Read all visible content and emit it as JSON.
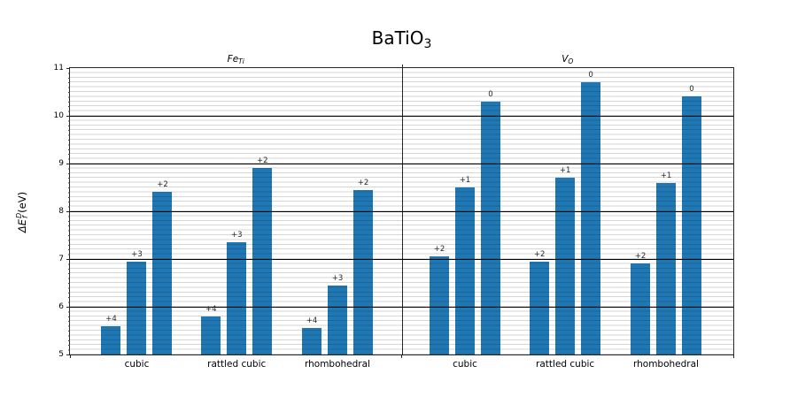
{
  "chart_data": {
    "type": "bar",
    "title": {
      "main": "BaTiO",
      "sub": "3"
    },
    "ylabel": {
      "prefix": "ΔE",
      "sup": "D",
      "sub": "f",
      "suffix": " (eV)"
    },
    "ylim": [
      5,
      11
    ],
    "yticks": [
      5,
      6,
      7,
      8,
      9,
      10,
      11
    ],
    "minor_grid_step": 0.1,
    "major_grid": "black solid lines at integer eV values, minor gray lines every 0.1 eV, drawn over bars",
    "bar_color": "#1f77b4",
    "categories": [
      "cubic",
      "rattled cubic",
      "rhombohedral"
    ],
    "panels": [
      {
        "title": {
          "main": "Fe",
          "sub": "Ti"
        },
        "series": [
          {
            "category": "cubic",
            "bars": [
              {
                "charge": "+4",
                "value": 5.6
              },
              {
                "charge": "+3",
                "value": 6.95
              },
              {
                "charge": "+2",
                "value": 8.4
              }
            ]
          },
          {
            "category": "rattled cubic",
            "bars": [
              {
                "charge": "+4",
                "value": 5.8
              },
              {
                "charge": "+3",
                "value": 7.35
              },
              {
                "charge": "+2",
                "value": 8.9
              }
            ]
          },
          {
            "category": "rhombohedral",
            "bars": [
              {
                "charge": "+4",
                "value": 5.55
              },
              {
                "charge": "+3",
                "value": 6.45
              },
              {
                "charge": "+2",
                "value": 8.45
              }
            ]
          }
        ]
      },
      {
        "title": {
          "main": "V",
          "sub": "O"
        },
        "series": [
          {
            "category": "cubic",
            "bars": [
              {
                "charge": "+2",
                "value": 7.05
              },
              {
                "charge": "+1",
                "value": 8.5
              },
              {
                "charge": "0",
                "value": 10.3
              }
            ]
          },
          {
            "category": "rattled cubic",
            "bars": [
              {
                "charge": "+2",
                "value": 6.95
              },
              {
                "charge": "+1",
                "value": 8.7
              },
              {
                "charge": "0",
                "value": 10.7
              }
            ]
          },
          {
            "category": "rhombohedral",
            "bars": [
              {
                "charge": "+2",
                "value": 6.9
              },
              {
                "charge": "+1",
                "value": 8.6
              },
              {
                "charge": "0",
                "value": 10.4
              }
            ]
          }
        ]
      }
    ]
  }
}
